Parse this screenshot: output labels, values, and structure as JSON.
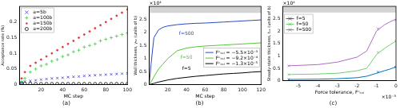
{
  "chart_data": [
    {
      "type": "scatter",
      "caption": "(a)",
      "x_label": "MC step",
      "y_label": "Acceptance rate (%)",
      "xlim": [
        0,
        100
      ],
      "xticks": [
        20,
        40,
        60,
        80,
        100
      ],
      "ylim": [
        0,
        0.25
      ],
      "yticks": [
        0,
        0.05,
        0.1,
        0.15,
        0.2
      ],
      "grid": false,
      "legend": "upper left",
      "x": [
        2,
        5,
        10,
        15,
        20,
        25,
        30,
        35,
        40,
        45,
        50,
        55,
        60,
        65,
        70,
        75,
        80,
        85,
        90,
        95,
        100
      ],
      "series": [
        {
          "name": "a=5b",
          "color": "#3b3bd6",
          "marker": "x",
          "values": [
            0.005,
            0.01,
            0.012,
            0.014,
            0.016,
            0.018,
            0.02,
            0.021,
            0.022,
            0.024,
            0.025,
            0.026,
            0.028,
            0.029,
            0.03,
            0.031,
            0.032,
            0.033,
            0.034,
            0.035,
            0.036
          ]
        },
        {
          "name": "a=100b",
          "color": "#3ccf3c",
          "marker": "+",
          "values": [
            0.01,
            0.02,
            0.04,
            0.05,
            0.06,
            0.065,
            0.075,
            0.08,
            0.09,
            0.095,
            0.105,
            0.11,
            0.12,
            0.125,
            0.13,
            0.14,
            0.145,
            0.15,
            0.155,
            0.16,
            0.165
          ]
        },
        {
          "name": "a=150b",
          "color": "#e03030",
          "marker": ".",
          "values": [
            0.02,
            0.04,
            0.06,
            0.07,
            0.08,
            0.09,
            0.1,
            0.11,
            0.12,
            0.13,
            0.14,
            0.15,
            0.16,
            0.17,
            0.18,
            0.19,
            0.2,
            0.21,
            0.22,
            0.23,
            0.24
          ]
        },
        {
          "name": "a=200b",
          "color": "#000000",
          "marker": "o",
          "values": [
            0.004,
            0.003,
            0.003,
            0.002,
            0.002,
            0.002,
            0.002,
            0.002,
            0.002,
            0.002,
            0.002,
            0.002,
            0.002,
            0.002,
            0.002,
            0.002,
            0.002,
            0.002,
            0.002,
            0.002,
            0.002
          ]
        }
      ]
    },
    {
      "type": "scatter",
      "caption": "(b)",
      "x_label": "MC step",
      "y_label": "Wall thickness, y₅₀ (units of b)",
      "y_multiplier": "×10⁴",
      "xlim": [
        0,
        120
      ],
      "xticks": [
        20,
        40,
        60,
        80,
        100,
        120
      ],
      "ylim": [
        0,
        3
      ],
      "yticks": [
        0,
        0.5,
        1,
        1.5,
        2,
        2.5
      ],
      "grid": false,
      "legend": "lower right",
      "line_style": "solid",
      "shaded_band": [
        2.75,
        3
      ],
      "x": [
        0,
        2,
        5,
        10,
        15,
        20,
        30,
        40,
        50,
        60,
        70,
        80,
        90,
        100,
        110,
        120
      ],
      "series": [
        {
          "name": "Fᶜₜₒₗ = −5.5×10⁻³",
          "color": "#2a48c8",
          "values": [
            0,
            0.8,
            1.8,
            2.1,
            2.2,
            2.25,
            2.3,
            2.33,
            2.35,
            2.36,
            2.38,
            2.4,
            2.42,
            2.44,
            2.46,
            2.48
          ]
        },
        {
          "name": "Fᶜₜₒₗ = −9.2×10⁻⁴",
          "color": "#55c535",
          "values": [
            0,
            0.1,
            0.3,
            0.6,
            0.8,
            1.0,
            1.3,
            1.4,
            1.45,
            1.48,
            1.5,
            1.52,
            1.54,
            1.56,
            1.58,
            1.6
          ]
        },
        {
          "name": "Fᶜₜₒₗ = −1.3×10⁻⁵",
          "color": "#000000",
          "values": [
            0,
            0.02,
            0.05,
            0.1,
            0.14,
            0.18,
            0.24,
            0.28,
            0.32,
            0.35,
            0.38,
            0.41,
            0.43,
            0.45,
            0.48,
            0.5
          ]
        }
      ],
      "annotations": [
        {
          "text": "f=500",
          "x": 40,
          "y": 1.95,
          "color": "#2a48c8"
        },
        {
          "text": "f=50",
          "x": 40,
          "y": 1.05,
          "color": "#55c535"
        },
        {
          "text": "f=5",
          "x": 40,
          "y": 0.6,
          "color": "#000000"
        }
      ]
    },
    {
      "type": "scatter",
      "caption": "(c)",
      "x_label": "Force tolerance, Fᶜₜₒₗ",
      "y_label": "Steady-state thickness, tₛₛ (units of b)",
      "y_multiplier": "×10⁴",
      "x_multiplier": "×10⁻³",
      "xlim": [
        -5.8,
        0
      ],
      "xticks": [
        -5,
        -4,
        -3,
        -2,
        -1,
        0
      ],
      "ylim": [
        0,
        3
      ],
      "yticks": [
        0,
        0.5,
        1,
        1.5,
        2,
        2.5
      ],
      "grid": false,
      "legend": "upper left",
      "shaded_band": [
        2.75,
        3
      ],
      "series": [
        {
          "name": "f=5",
          "color": "#0072bd",
          "marker": "x",
          "x": [
            -5.5,
            -0.92,
            -0.013
          ],
          "values": [
            0.05,
            0.35,
            0.55
          ],
          "fit_x": [
            -5.5,
            -4,
            -3,
            -2,
            -1.5,
            -1,
            -0.6,
            -0.3,
            -0.1,
            0
          ],
          "fit_values": [
            0.05,
            0.06,
            0.08,
            0.12,
            0.18,
            0.3,
            0.4,
            0.47,
            0.53,
            0.56
          ]
        },
        {
          "name": "f=50",
          "color": "#6fcf6f",
          "marker": "x",
          "x": [
            -5.5,
            -0.92,
            -0.013
          ],
          "values": [
            0.25,
            1.15,
            1.6
          ],
          "fit_x": [
            -5.5,
            -4,
            -3,
            -2,
            -1.5,
            -1,
            -0.6,
            -0.3,
            -0.1,
            0
          ],
          "fit_values": [
            0.25,
            0.27,
            0.3,
            0.4,
            0.5,
            1.05,
            1.3,
            1.45,
            1.55,
            1.6
          ]
        },
        {
          "name": "f=500",
          "color": "#b06cc4",
          "marker": "x",
          "x": [
            -5.5,
            -0.92,
            -0.013
          ],
          "values": [
            0.6,
            2.1,
            2.45
          ],
          "fit_x": [
            -5.5,
            -4,
            -3,
            -2,
            -1.5,
            -1,
            -0.6,
            -0.3,
            -0.1,
            0
          ],
          "fit_values": [
            0.6,
            0.65,
            0.75,
            0.95,
            1.2,
            2.0,
            2.25,
            2.38,
            2.45,
            2.48
          ]
        }
      ]
    }
  ]
}
